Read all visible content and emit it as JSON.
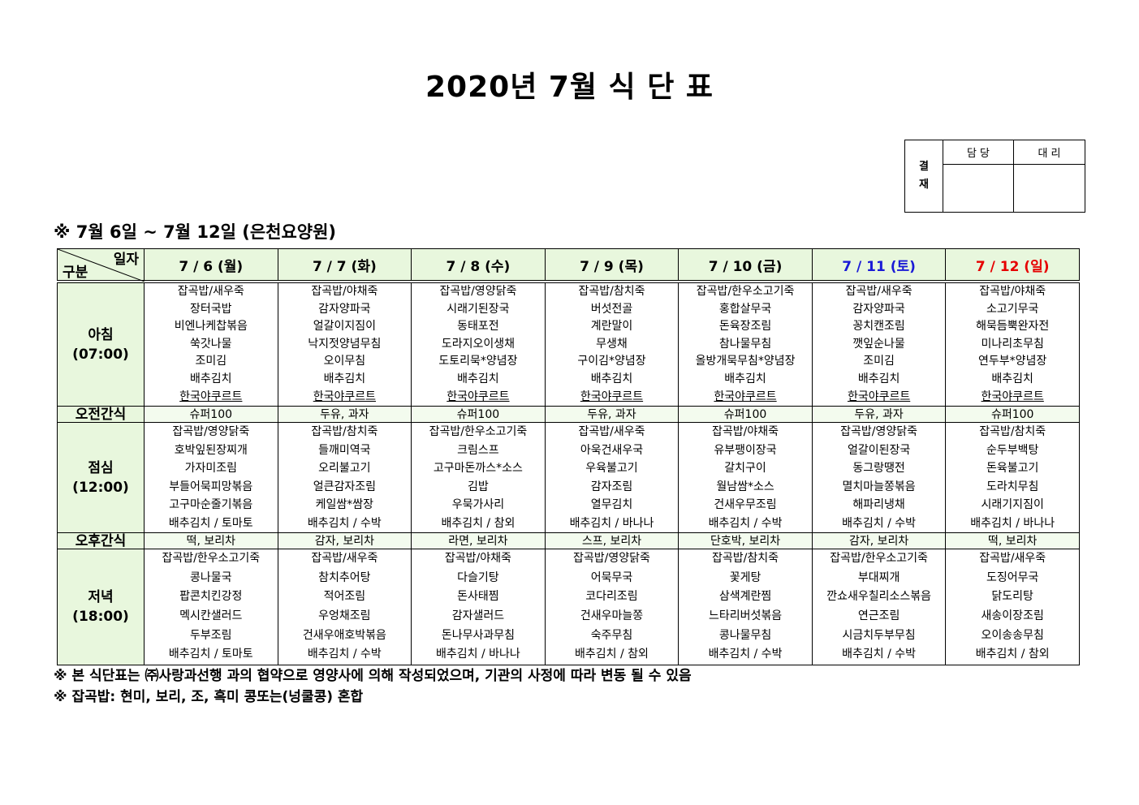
{
  "title": "2020년 7월 식 단 표",
  "approval": {
    "label": "결\n재",
    "label_lines": [
      "결",
      "재"
    ],
    "col1": "담 당",
    "col2": "대 리"
  },
  "subtitle": "※ 7월 6일 ~ 7월 12일 (은천요양원)",
  "header": {
    "corner_top": "일자",
    "corner_bottom": "구분"
  },
  "colors": {
    "header_bg": "#e8f7dd",
    "saturday": "#1a1ad6",
    "sunday": "#e60000"
  },
  "days": [
    {
      "label": "7 / 6 (월)",
      "color": "#000000"
    },
    {
      "label": "7 / 7 (화)",
      "color": "#000000"
    },
    {
      "label": "7 / 8 (수)",
      "color": "#000000"
    },
    {
      "label": "7 / 9 (목)",
      "color": "#000000"
    },
    {
      "label": "7 / 10 (금)",
      "color": "#000000"
    },
    {
      "label": "7 / 11 (토)",
      "color": "#1a1ad6"
    },
    {
      "label": "7 / 12 (일)",
      "color": "#e60000"
    }
  ],
  "meals": {
    "breakfast": {
      "label": "아침",
      "time": "(07:00)",
      "items": [
        [
          "잡곡밥/새우죽",
          "장터국밥",
          "비엔나케찹볶음",
          "쑥갓나물",
          "조미김",
          "배추김치",
          "한국야쿠르트"
        ],
        [
          "잡곡밥/야채죽",
          "감자양파국",
          "얼갈이지짐이",
          "낙지젓양념무침",
          "오이무침",
          "배추김치",
          "한국야쿠르트"
        ],
        [
          "잡곡밥/영양닭죽",
          "시래기된장국",
          "동태포전",
          "도라지오이생채",
          "도토리묵*양념장",
          "배추김치",
          "한국야쿠르트"
        ],
        [
          "잡곡밥/참치죽",
          "버섯전골",
          "계란말이",
          "무생채",
          "구이김*양념장",
          "배추김치",
          "한국야쿠르트"
        ],
        [
          "잡곡밥/한우소고기죽",
          "홍합살무국",
          "돈육장조림",
          "참나물무침",
          "올방개묵무침*양념장",
          "배추김치",
          "한국야쿠르트"
        ],
        [
          "잡곡밥/새우죽",
          "감자양파국",
          "꽁치캔조림",
          "깻잎순나물",
          "조미김",
          "배추김치",
          "한국야쿠르트"
        ],
        [
          "잡곡밥/야채죽",
          "소고기무국",
          "해묵듬뿍완자전",
          "미나리초무침",
          "연두부*양념장",
          "배추김치",
          "한국야쿠르트"
        ]
      ]
    },
    "morning_snack": {
      "label": "오전간식",
      "items": [
        "슈퍼100",
        "두유, 과자",
        "슈퍼100",
        "두유, 과자",
        "슈퍼100",
        "두유, 과자",
        "슈퍼100"
      ]
    },
    "lunch": {
      "label": "점심",
      "time": "(12:00)",
      "items": [
        [
          "잡곡밥/영양닭죽",
          "호박잎된장찌개",
          "가자미조림",
          "부들어묵피망볶음",
          "고구마순줄기볶음",
          "배추김치 / 토마토"
        ],
        [
          "잡곡밥/참치죽",
          "들깨미역국",
          "오리불고기",
          "얼큰감자조림",
          "케일쌈*쌈장",
          "배추김치 / 수박"
        ],
        [
          "잡곡밥/한우소고기죽",
          "크림스프",
          "고구마돈까스*소스",
          "김밥",
          "우묵가사리",
          "배추김치 / 참외"
        ],
        [
          "잡곡밥/새우죽",
          "아욱건새우국",
          "우육불고기",
          "감자조림",
          "열무김치",
          "배추김치 / 바나나"
        ],
        [
          "잡곡밥/야채죽",
          "유부팽이장국",
          "갈치구이",
          "월남쌈*소스",
          "건새우무조림",
          "배추김치 / 수박"
        ],
        [
          "잡곡밥/영양닭죽",
          "얼갈이된장국",
          "동그랑땡전",
          "멸치마늘쫑볶음",
          "해파리냉채",
          "배추김치 / 수박"
        ],
        [
          "잡곡밥/참치죽",
          "순두부백탕",
          "돈육불고기",
          "도라치무침",
          "시래기지짐이",
          "배추김치 / 바나나"
        ]
      ]
    },
    "afternoon_snack": {
      "label": "오후간식",
      "items": [
        "떡, 보리차",
        "감자, 보리차",
        "라면, 보리차",
        "스프, 보리차",
        "단호박, 보리차",
        "감자, 보리차",
        "떡, 보리차"
      ]
    },
    "dinner": {
      "label": "저녁",
      "time": "(18:00)",
      "items": [
        [
          "잡곡밥/한우소고기죽",
          "콩나물국",
          "팝콘치킨강정",
          "멕시칸샐러드",
          "두부조림",
          "배추김치 / 토마토"
        ],
        [
          "잡곡밥/새우죽",
          "참치추어탕",
          "적어조림",
          "우엉채조림",
          "건새우애호박볶음",
          "배추김치 / 수박"
        ],
        [
          "잡곡밥/야채죽",
          "다슬기탕",
          "돈사태찜",
          "감자샐러드",
          "돈나무사과무침",
          "배추김치 / 바나나"
        ],
        [
          "잡곡밥/영양닭죽",
          "어묵무국",
          "코다리조림",
          "건새우마늘쫑",
          "숙주무침",
          "배추김치 / 참외"
        ],
        [
          "잡곡밥/참치죽",
          "꽃게탕",
          "삼색계란찜",
          "느타리버섯볶음",
          "콩나물무침",
          "배추김치 / 수박"
        ],
        [
          "잡곡밥/한우소고기죽",
          "부대찌개",
          "깐쇼새우칠리소스볶음",
          "연근조림",
          "시금치두부무침",
          "배추김치 / 수박"
        ],
        [
          "잡곡밥/새우죽",
          "도징어무국",
          "닭도리탕",
          "새송이장조림",
          "오이송송무침",
          "배추김치 / 참외"
        ]
      ]
    }
  },
  "notes": [
    "※ 본 식단표는 ㈜사랑과선행 과의 협약으로 영양사에 의해 작성되었으며, 기관의 사정에 따라 변동 될 수 있음",
    "※ 잡곡밥: 현미, 보리, 조, 흑미 콩또는(넝쿨콩) 혼합"
  ]
}
